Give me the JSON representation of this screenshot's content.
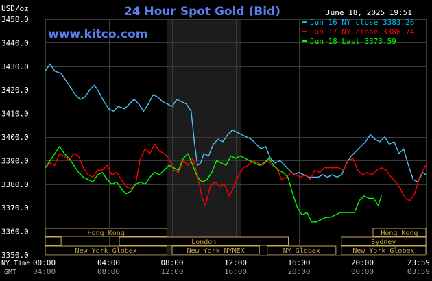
{
  "chart_data": {
    "type": "line",
    "title": "24 Hour Spot Gold (Bid)",
    "site": "www.kitco.com",
    "timestamp": "June 18, 2025 19:51",
    "yunit": "USD/oz",
    "ylim": [
      3350,
      3450
    ],
    "yticks": [
      "3450.0",
      "3440.0",
      "3430.0",
      "3420.0",
      "3410.0",
      "3400.0",
      "3390.0",
      "3380.0",
      "3370.0",
      "3360.0",
      "3350.0"
    ],
    "xlim": [
      0,
      24
    ],
    "x_row_ny": {
      "label": "NY Time",
      "ticks": [
        "00:00",
        "04:00",
        "08:00",
        "12:00",
        "16:00",
        "20:00",
        "23:59"
      ]
    },
    "x_row_gmt": {
      "label": "GMT",
      "ticks": [
        "04:00",
        "08:00",
        "12:00",
        "16:00",
        "20:00",
        "00:00",
        "03:59"
      ]
    },
    "grid": true,
    "shaded_period": [
      7.67,
      12.33
    ],
    "legend": [
      {
        "text": "Jun 16 NY close 3383.26",
        "color": "#00BFFF"
      },
      {
        "text": "Jun 17 NY close 3386.74",
        "color": "#FF0000"
      },
      {
        "text": "Jun 18 Last 3373.59",
        "color": "#00FF00"
      }
    ],
    "series": [
      {
        "name": "Jun 16",
        "color": "#4FC3F7",
        "x": [
          0,
          0.3,
          0.6,
          1.0,
          1.3,
          1.6,
          1.9,
          2.2,
          2.5,
          2.8,
          3.1,
          3.4,
          3.7,
          4.0,
          4.3,
          4.6,
          5.0,
          5.3,
          5.6,
          5.9,
          6.2,
          6.5,
          6.8,
          7.1,
          7.4,
          7.7,
          8.0,
          8.3,
          8.6,
          8.9,
          9.2,
          9.4,
          9.6,
          9.8,
          10.0,
          10.3,
          10.6,
          10.9,
          11.2,
          11.5,
          11.8,
          12.1,
          12.4,
          12.7,
          13.0,
          13.3,
          13.6,
          13.9,
          14.2,
          14.5,
          14.8,
          15.1,
          15.4,
          15.7,
          16.0,
          16.3,
          16.6,
          16.9,
          17.2,
          17.5,
          17.8,
          18.1,
          18.4,
          18.7,
          19.0,
          19.3,
          19.6,
          19.9,
          20.2,
          20.5,
          20.8,
          21.1,
          21.4,
          21.7,
          22.0,
          22.3,
          22.6,
          22.9,
          23.2,
          23.5,
          23.8,
          23.99
        ],
        "values": [
          3428,
          3431,
          3428,
          3427,
          3424,
          3421,
          3418,
          3416,
          3417,
          3420,
          3422,
          3419,
          3415,
          3412,
          3411,
          3413,
          3412,
          3414,
          3416,
          3414,
          3411,
          3414,
          3418,
          3417,
          3415,
          3414,
          3413,
          3416,
          3415,
          3414,
          3411,
          3398,
          3388,
          3389,
          3393,
          3392,
          3397,
          3399,
          3398,
          3401,
          3403,
          3402,
          3401,
          3400,
          3399,
          3397,
          3395,
          3396,
          3391,
          3389,
          3390,
          3388,
          3386,
          3384,
          3385,
          3384,
          3383,
          3383,
          3383,
          3384,
          3383,
          3384,
          3383,
          3384,
          3389,
          3392,
          3394,
          3396,
          3398,
          3401,
          3399,
          3398,
          3400,
          3397,
          3398,
          3393,
          3395,
          3388,
          3382,
          3381,
          3385,
          3384
        ]
      },
      {
        "name": "Jun 17",
        "color": "#FF0000",
        "x": [
          0,
          0.3,
          0.6,
          0.9,
          1.2,
          1.5,
          1.8,
          2.1,
          2.4,
          2.7,
          3.0,
          3.3,
          3.6,
          3.9,
          4.2,
          4.5,
          4.8,
          5.1,
          5.4,
          5.7,
          6.0,
          6.3,
          6.6,
          6.9,
          7.2,
          7.5,
          7.8,
          8.1,
          8.4,
          8.7,
          9.0,
          9.3,
          9.6,
          9.9,
          10.1,
          10.4,
          10.7,
          11.0,
          11.3,
          11.6,
          11.9,
          12.2,
          12.5,
          12.8,
          13.1,
          13.4,
          13.7,
          14.0,
          14.3,
          14.6,
          14.9,
          15.2,
          15.5,
          15.8,
          16.1,
          16.4,
          16.7,
          17.0,
          17.3,
          17.6,
          17.9,
          18.2,
          18.5,
          18.8,
          19.1,
          19.4,
          19.7,
          20.0,
          20.3,
          20.6,
          20.9,
          21.2,
          21.5,
          21.8,
          22.1,
          22.4,
          22.7,
          23.0,
          23.3,
          23.6,
          23.99
        ],
        "values": [
          3387,
          3389,
          3388,
          3393,
          3392,
          3390,
          3393,
          3392,
          3387,
          3384,
          3383,
          3386,
          3386,
          3388,
          3384,
          3385,
          3382,
          3379,
          3378,
          3380,
          3391,
          3395,
          3393,
          3397,
          3394,
          3393,
          3391,
          3386,
          3385,
          3390,
          3388,
          3391,
          3384,
          3374,
          3371,
          3379,
          3381,
          3379,
          3380,
          3375,
          3379,
          3384,
          3387,
          3388,
          3390,
          3389,
          3388,
          3390,
          3388,
          3387,
          3382,
          3383,
          3385,
          3384,
          3383,
          3384,
          3382,
          3386,
          3385,
          3387,
          3387,
          3387,
          3387,
          3386,
          3390,
          3391,
          3386,
          3384,
          3385,
          3384,
          3386,
          3387,
          3386,
          3383,
          3381,
          3378,
          3374,
          3373,
          3376,
          3383,
          3388
        ]
      },
      {
        "name": "Jun 18",
        "color": "#00FF00",
        "x": [
          0,
          0.3,
          0.6,
          0.9,
          1.2,
          1.5,
          1.8,
          2.1,
          2.4,
          2.7,
          3.0,
          3.3,
          3.6,
          3.9,
          4.2,
          4.5,
          4.8,
          5.1,
          5.4,
          5.7,
          6.0,
          6.3,
          6.6,
          6.9,
          7.2,
          7.5,
          7.8,
          8.1,
          8.4,
          8.7,
          9.0,
          9.3,
          9.6,
          9.9,
          10.2,
          10.5,
          10.8,
          11.1,
          11.4,
          11.7,
          12.0,
          12.3,
          12.6,
          12.9,
          13.2,
          13.5,
          13.8,
          14.1,
          14.4,
          14.7,
          15.0,
          15.3,
          15.6,
          15.9,
          16.2,
          16.5,
          16.8,
          17.1,
          17.4,
          17.7,
          18.0,
          18.3,
          18.6,
          18.9,
          19.2,
          19.5,
          19.8,
          20.1,
          20.4,
          20.7,
          21.0,
          21.2
        ],
        "values": [
          3387,
          3390,
          3393,
          3396,
          3393,
          3391,
          3388,
          3385,
          3383,
          3382,
          3381,
          3384,
          3385,
          3382,
          3380,
          3381,
          3378,
          3376,
          3377,
          3380,
          3381,
          3380,
          3383,
          3385,
          3384,
          3386,
          3388,
          3387,
          3386,
          3391,
          3393,
          3388,
          3383,
          3381,
          3382,
          3385,
          3390,
          3389,
          3388,
          3392,
          3391,
          3392,
          3391,
          3390,
          3389,
          3388,
          3389,
          3391,
          3388,
          3386,
          3385,
          3383,
          3376,
          3370,
          3367,
          3368,
          3364,
          3364,
          3365,
          3366,
          3366,
          3367,
          3368,
          3368,
          3368,
          3368,
          3373,
          3375,
          3374,
          3374,
          3371,
          3375
        ]
      }
    ],
    "sessions": {
      "row1": [
        {
          "label": "Hong Kong",
          "start": 0.0,
          "end": 7.67
        },
        {
          "label": "Hong Kong",
          "start": 20.67,
          "end": 24.0
        }
      ],
      "row2": [
        {
          "label": "",
          "start": 0.0,
          "end": 1.0
        },
        {
          "label": "London",
          "start": 4.67,
          "end": 15.33
        },
        {
          "label": "Sydney",
          "start": 18.67,
          "end": 24.0
        }
      ],
      "row3": [
        {
          "label": "New York Globex",
          "start": 0.0,
          "end": 7.67
        },
        {
          "label": "New York NYMEX",
          "start": 8.0,
          "end": 13.5
        },
        {
          "label": "NY Globex",
          "start": 14.0,
          "end": 18.33
        },
        {
          "label": "New York Globex",
          "start": 18.67,
          "end": 24.0
        }
      ]
    }
  }
}
